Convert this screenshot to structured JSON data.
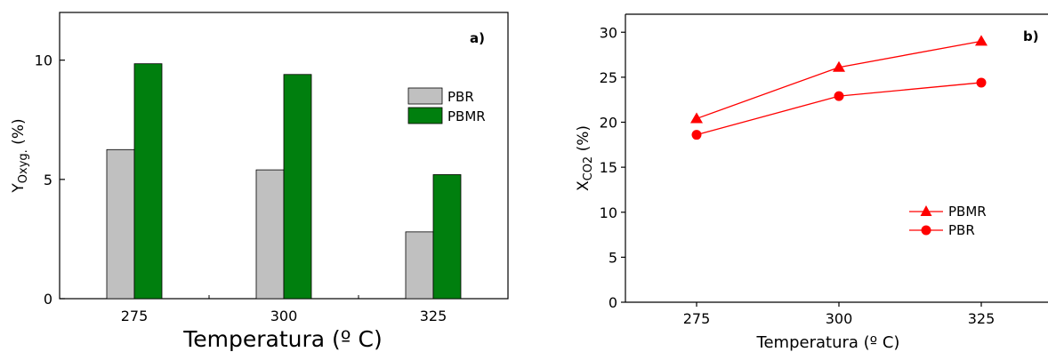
{
  "chart_data": [
    {
      "type": "bar",
      "panel_label": "a)",
      "categories": [
        "275",
        "300",
        "325"
      ],
      "series": [
        {
          "name": "PBR",
          "values": [
            6.25,
            5.4,
            2.8
          ],
          "color": "#c0c0c0"
        },
        {
          "name": "PBMR",
          "values": [
            9.85,
            9.4,
            5.2
          ],
          "color": "#007f0e"
        }
      ],
      "xlabel": "Temperatura (º C)",
      "ylabel": {
        "base": "Y",
        "sub": "Oxyg.",
        "unit": " (%)"
      },
      "ylim": [
        0,
        12
      ],
      "yticks": [
        "0",
        "5",
        "10"
      ],
      "legend_position": "right"
    },
    {
      "type": "line",
      "panel_label": "b)",
      "x": [
        275,
        300,
        325
      ],
      "xticks": [
        "275",
        "300",
        "325"
      ],
      "series": [
        {
          "name": "PBMR",
          "values": [
            20.4,
            26.1,
            29.0
          ],
          "marker": "triangle",
          "color": "#ff0000"
        },
        {
          "name": "PBR",
          "values": [
            18.6,
            22.9,
            24.4
          ],
          "marker": "circle",
          "color": "#ff0000"
        }
      ],
      "xlabel": "Temperatura (º C)",
      "ylabel": {
        "base": "X",
        "sub": "CO2",
        "unit": " (%)"
      },
      "xlim": [
        260,
        340
      ],
      "ylim": [
        0,
        32
      ],
      "yticks": [
        "0",
        "5",
        "10",
        "15",
        "20",
        "25",
        "30"
      ],
      "legend_position": "lower right"
    }
  ]
}
